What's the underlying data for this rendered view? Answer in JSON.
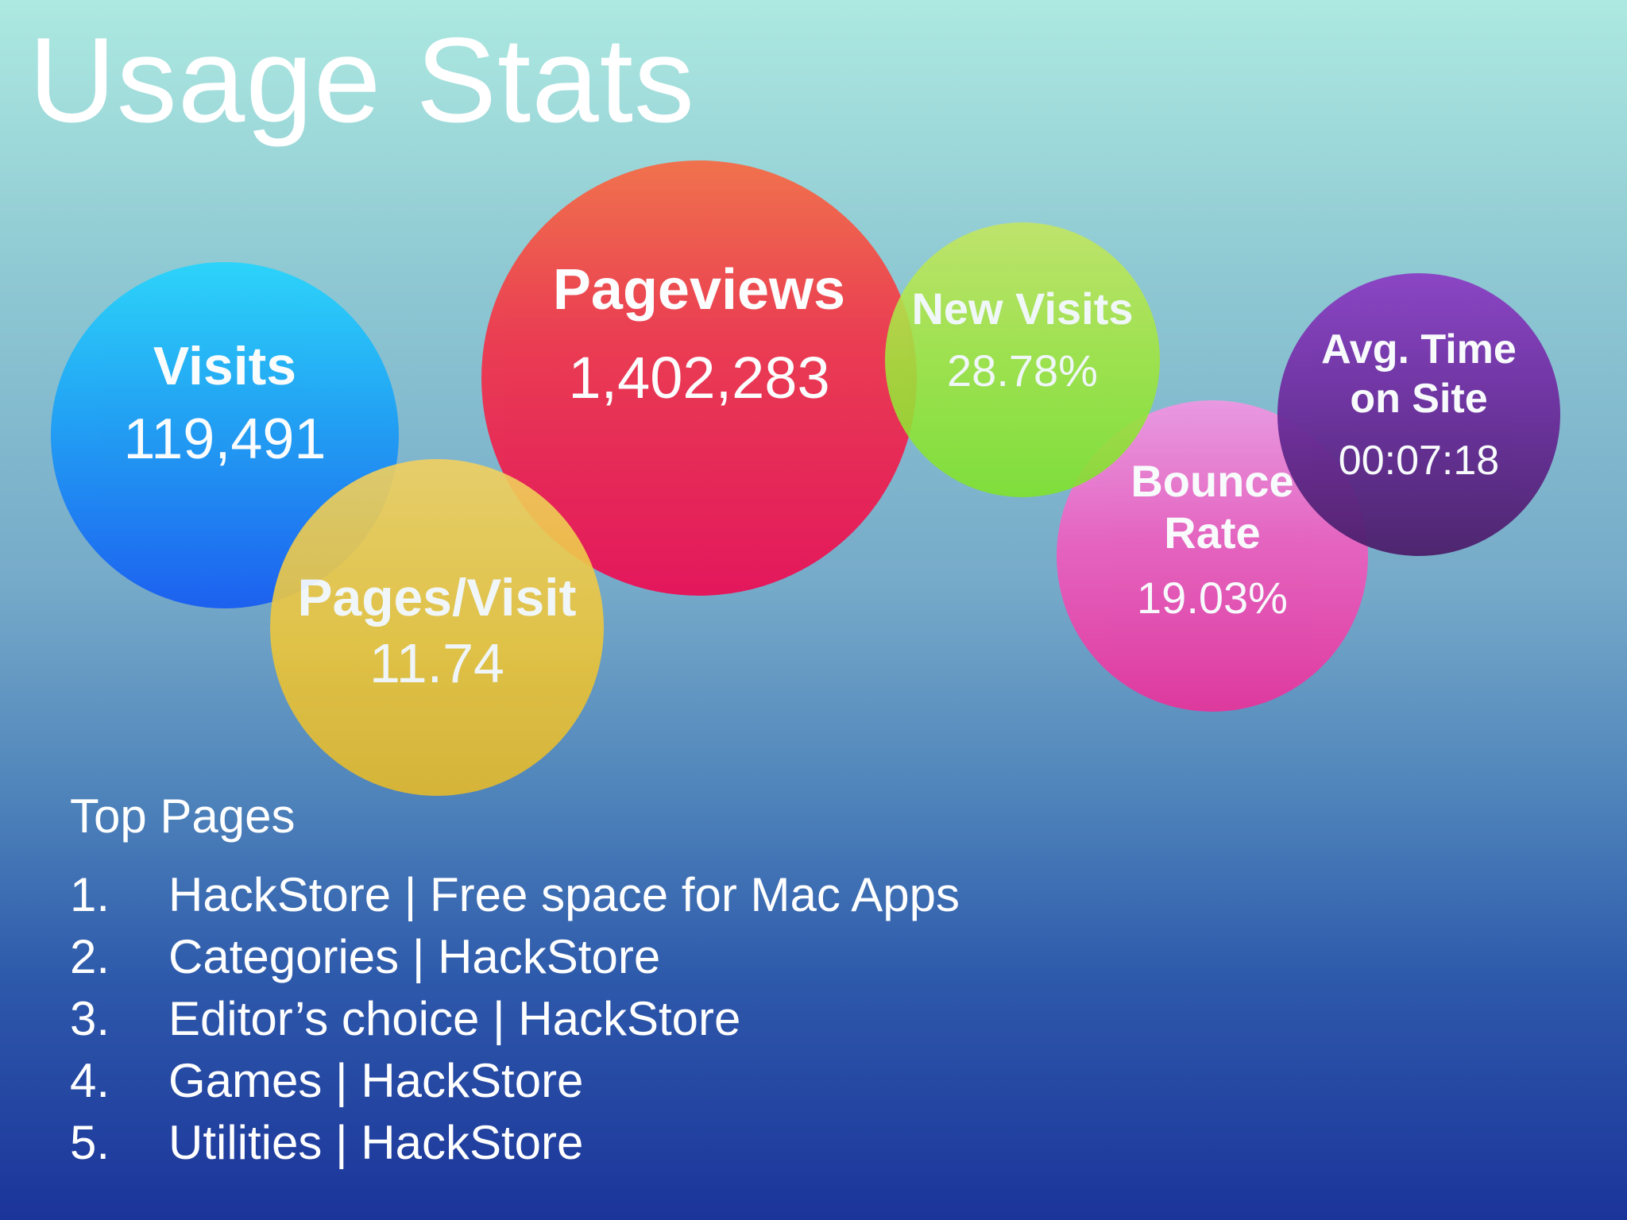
{
  "title": "Usage Stats",
  "metrics": {
    "visits": {
      "label": "Visits",
      "value": "119,491",
      "color": "#1fa1f5"
    },
    "pageviews": {
      "label": "Pageviews",
      "value": "1,402,283",
      "color": "#ec3c50"
    },
    "new_visits": {
      "label": "New Visits",
      "value": "28.78%",
      "color": "#a0e63e"
    },
    "avg_time": {
      "label_line1": "Avg. Time",
      "label_line2": "on Site",
      "value": "00:07:18",
      "color": "#6a2c9a"
    },
    "pages_per_visit": {
      "label": "Pages/Visit",
      "value": "11.74",
      "color": "#ecc63a"
    },
    "bounce_rate": {
      "label_line1": "Bounce",
      "label_line2": "Rate",
      "value": "19.03%",
      "color": "#ea61c0"
    }
  },
  "top_pages": {
    "heading": "Top Pages",
    "items": [
      {
        "num": "1.",
        "text": "HackStore | Free space for Mac Apps"
      },
      {
        "num": "2.",
        "text": "Categories | HackStore"
      },
      {
        "num": "3.",
        "text": "Editor’s choice | HackStore"
      },
      {
        "num": "4.",
        "text": "Games | HackStore"
      },
      {
        "num": "5.",
        "text": "Utilities | HackStore"
      }
    ]
  }
}
